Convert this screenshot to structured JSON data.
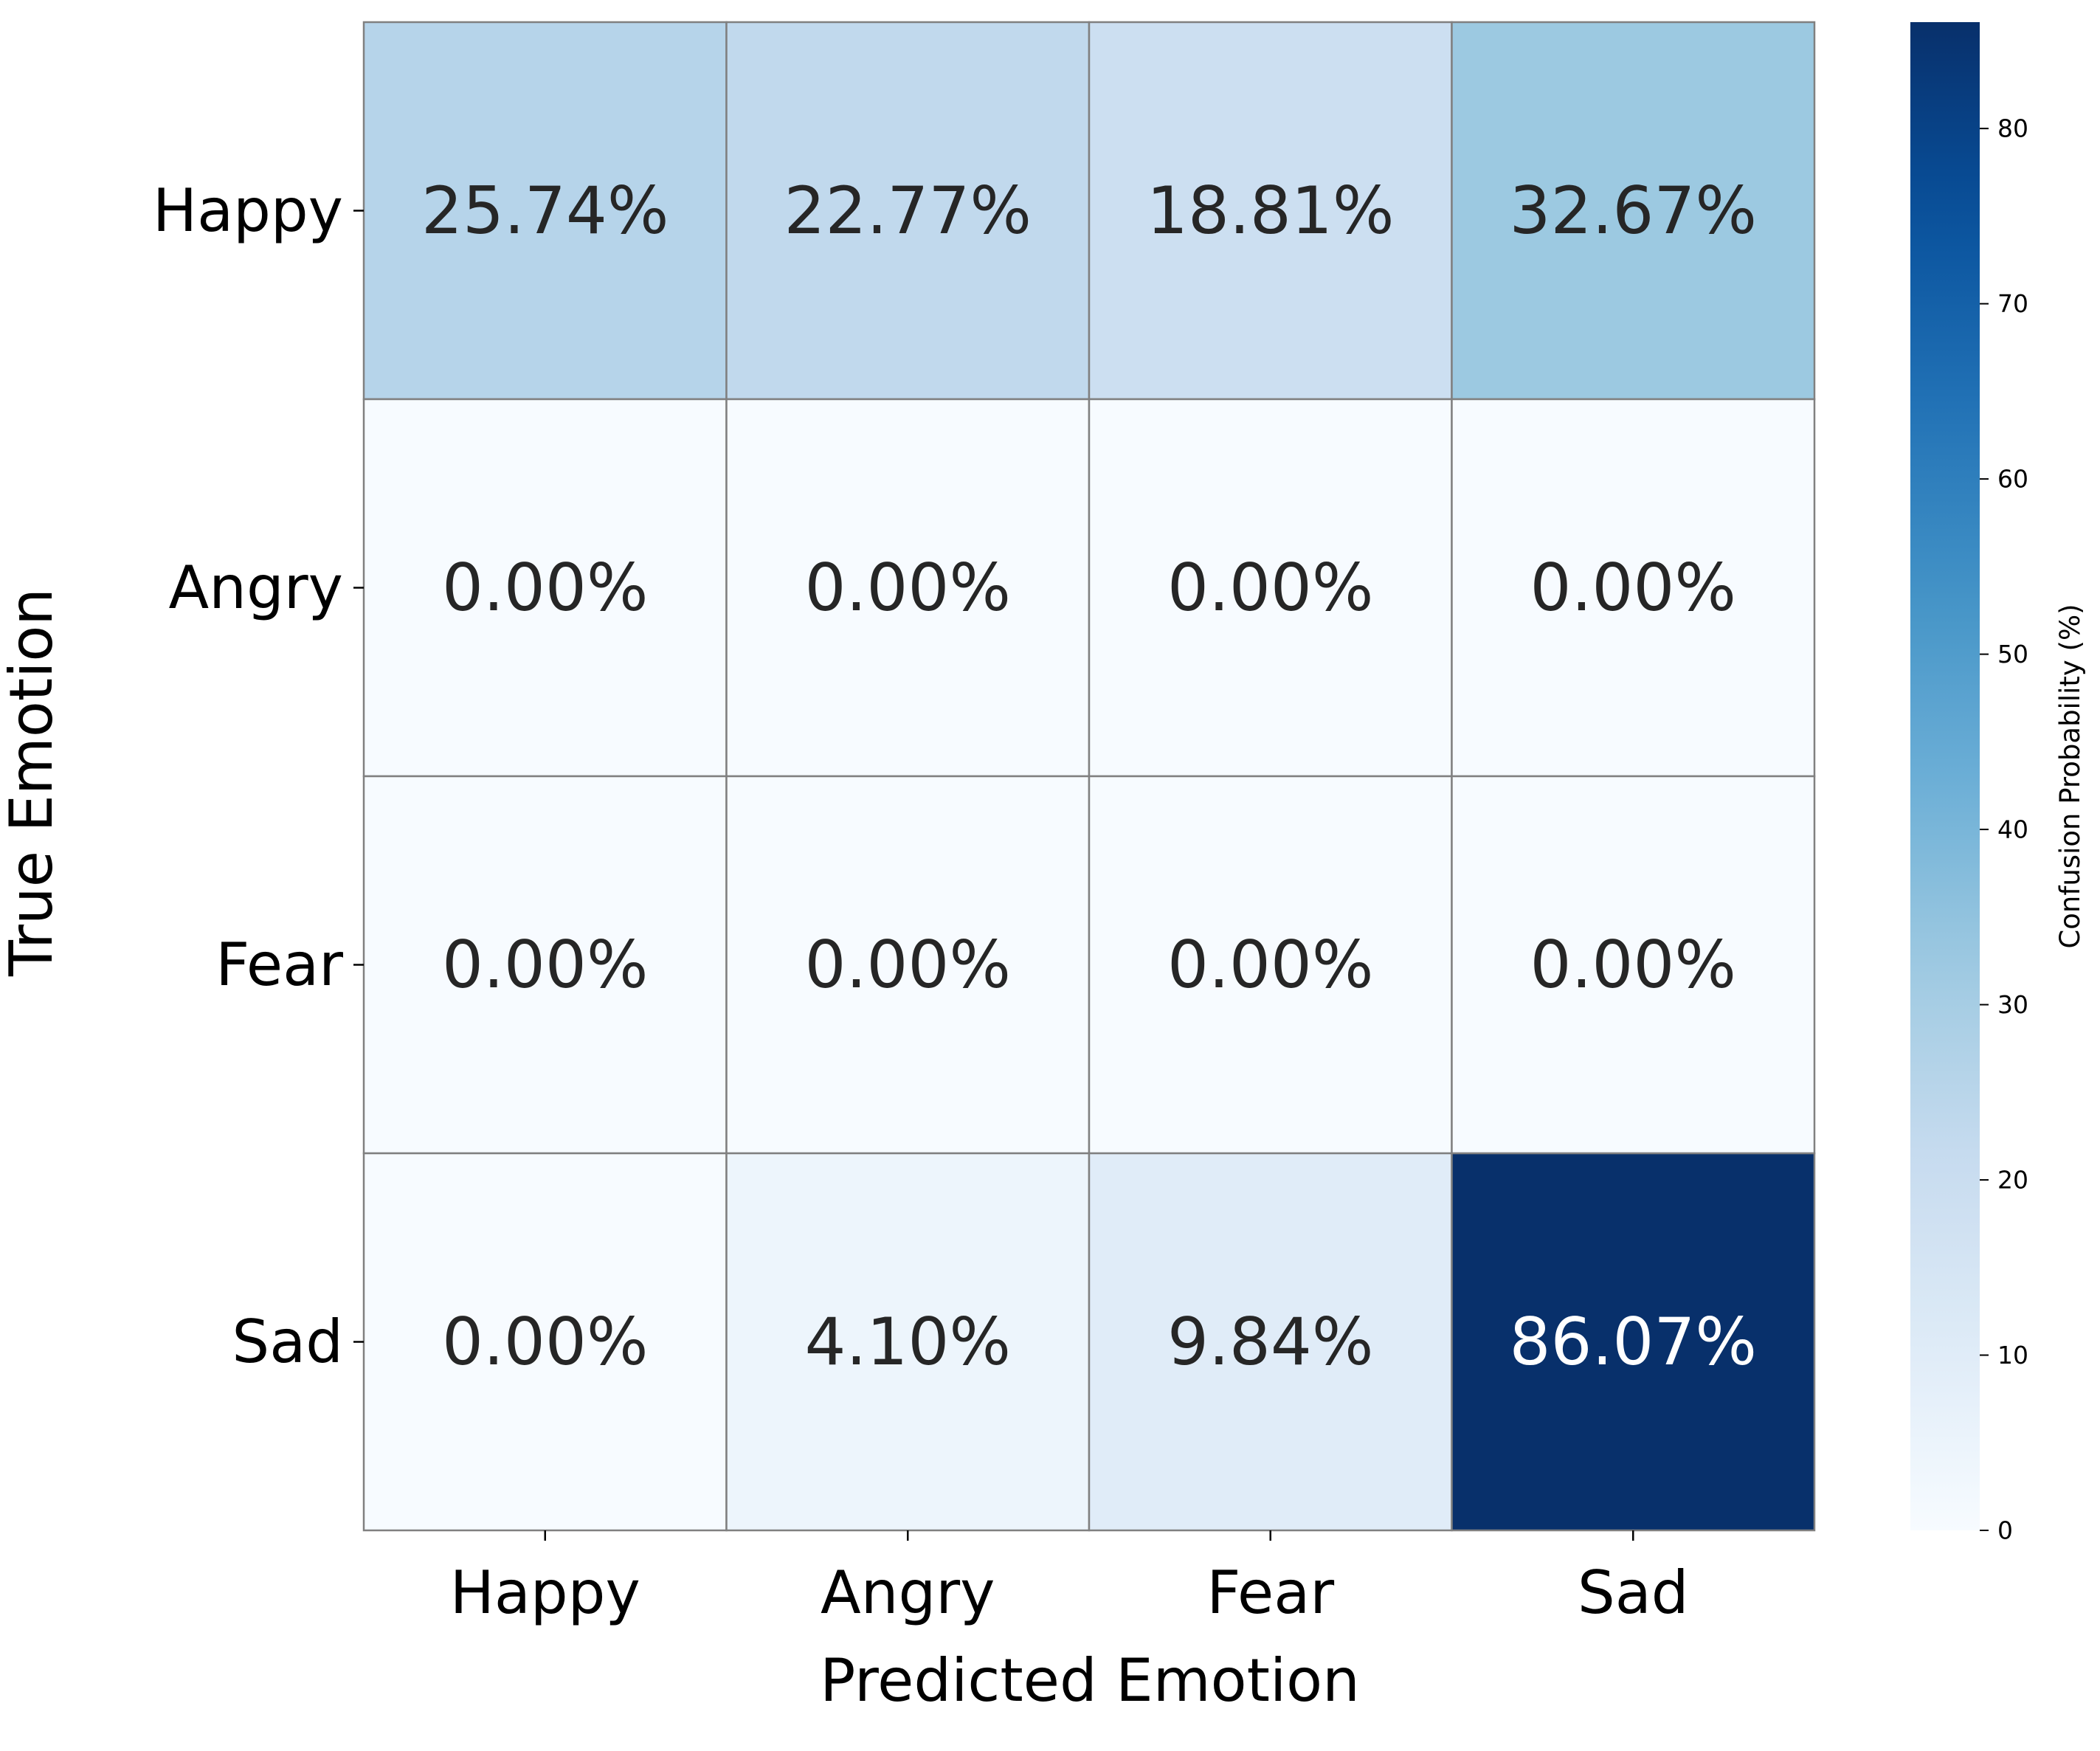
{
  "chart_data": {
    "type": "heatmap",
    "title": "",
    "xlabel": "Predicted Emotion",
    "ylabel": "True Emotion",
    "x_categories": [
      "Happy",
      "Angry",
      "Fear",
      "Sad"
    ],
    "y_categories": [
      "Happy",
      "Angry",
      "Fear",
      "Sad"
    ],
    "values": [
      [
        25.74,
        22.77,
        18.81,
        32.67
      ],
      [
        0.0,
        0.0,
        0.0,
        0.0
      ],
      [
        0.0,
        0.0,
        0.0,
        0.0
      ],
      [
        0.0,
        4.1,
        9.84,
        86.07
      ]
    ],
    "cell_labels": [
      [
        "25.74%",
        "22.77%",
        "18.81%",
        "32.67%"
      ],
      [
        "0.00%",
        "0.00%",
        "0.00%",
        "0.00%"
      ],
      [
        "0.00%",
        "0.00%",
        "0.00%",
        "0.00%"
      ],
      [
        "0.00%",
        "4.10%",
        "9.84%",
        "86.07%"
      ]
    ],
    "colormap": "Blues",
    "colorbar": {
      "label": "Confusion Probability (%)",
      "range": [
        0,
        86.07
      ],
      "ticks": [
        0,
        10,
        20,
        30,
        40,
        50,
        60,
        70,
        80
      ],
      "tick_labels": [
        "0",
        "10",
        "20",
        "30",
        "40",
        "50",
        "60",
        "70",
        "80"
      ]
    },
    "grid": false,
    "legend": "none",
    "cell_border_color": "#808080"
  }
}
